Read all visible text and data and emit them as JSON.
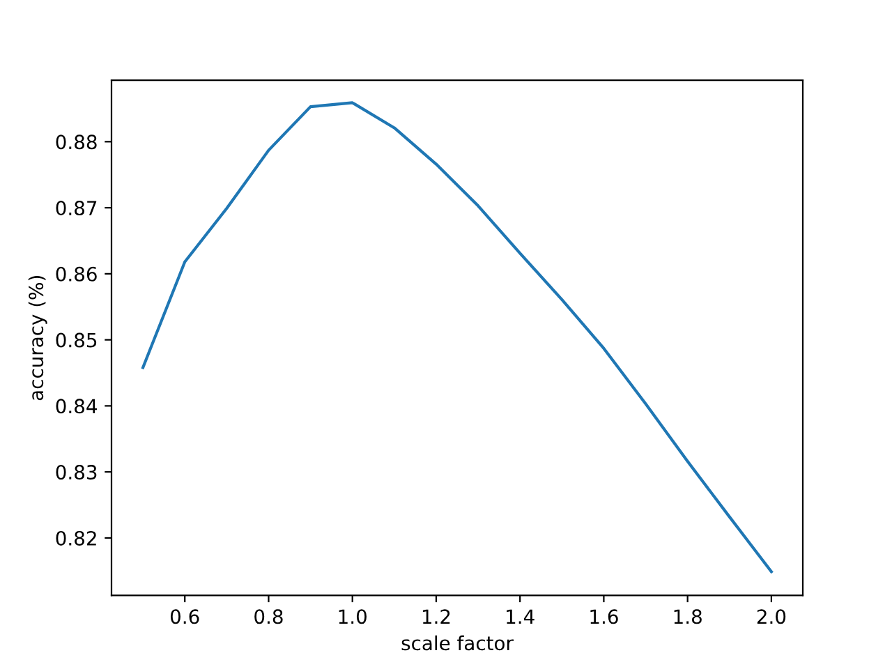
{
  "chart_data": {
    "type": "line",
    "xlabel": "scale factor",
    "ylabel": "accuracy (%)",
    "x": [
      0.5,
      0.6,
      0.7,
      0.8,
      0.9,
      1.0,
      1.1,
      1.2,
      1.3,
      1.4,
      1.5,
      1.6,
      1.7,
      1.8,
      1.9,
      2.0
    ],
    "series": [
      {
        "color": "#1f77b4",
        "values": [
          0.8458,
          0.8618,
          0.8699,
          0.8787,
          0.8853,
          0.8859,
          0.8821,
          0.8766,
          0.8703,
          0.8631,
          0.8561,
          0.8487,
          0.8403,
          0.8316,
          0.8232,
          0.8149
        ]
      }
    ],
    "xlim": [
      0.425,
      2.075
    ],
    "xticks": [
      {
        "value": 0.6,
        "label": "0.6"
      },
      {
        "value": 0.8,
        "label": "0.8"
      },
      {
        "value": 1.0,
        "label": "1.0"
      },
      {
        "value": 1.2,
        "label": "1.2"
      },
      {
        "value": 1.4,
        "label": "1.4"
      },
      {
        "value": 1.6,
        "label": "1.6"
      },
      {
        "value": 1.8,
        "label": "1.8"
      },
      {
        "value": 2.0,
        "label": "2.0"
      }
    ],
    "ylim": [
      0.8113,
      0.8893
    ],
    "yticks": [
      {
        "value": 0.82,
        "label": "0.82"
      },
      {
        "value": 0.83,
        "label": "0.83"
      },
      {
        "value": 0.84,
        "label": "0.84"
      },
      {
        "value": 0.85,
        "label": "0.85"
      },
      {
        "value": 0.86,
        "label": "0.86"
      },
      {
        "value": 0.87,
        "label": "0.87"
      },
      {
        "value": 0.88,
        "label": "0.88"
      }
    ],
    "grid": false,
    "legend": false,
    "marker": "none",
    "line_style": "solid"
  }
}
